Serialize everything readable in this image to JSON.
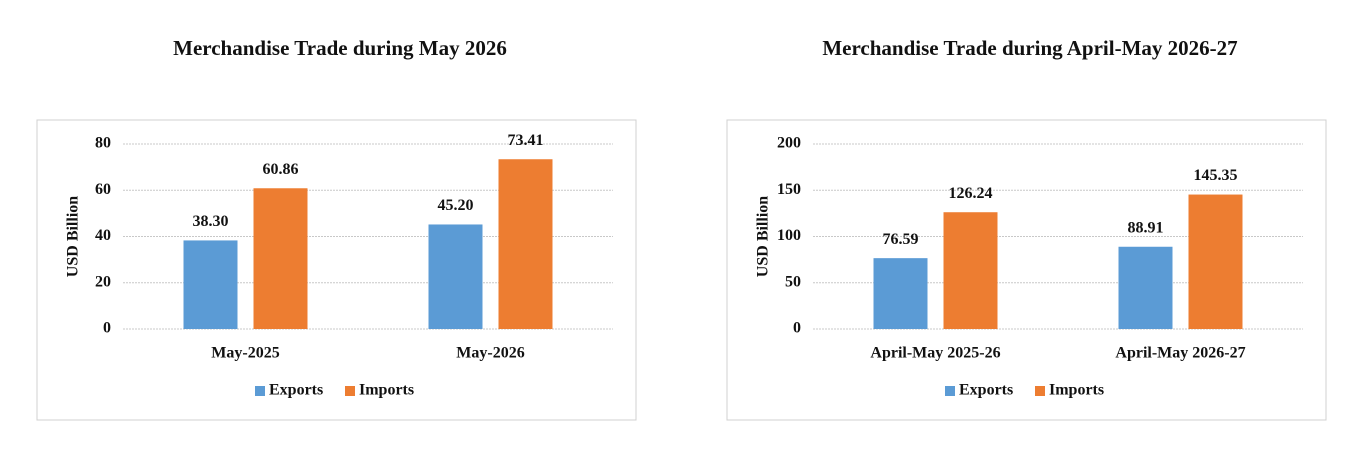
{
  "chart_data": [
    {
      "type": "bar",
      "title": "Merchandise Trade during May 2026",
      "y_label": "USD Billion",
      "categories": [
        "May-2025",
        "May-2026"
      ],
      "series": [
        {
          "name": "Exports",
          "color": "#5b9bd5",
          "values": [
            38.3,
            45.2
          ],
          "value_labels": [
            "38.30",
            "45.20"
          ]
        },
        {
          "name": "Imports",
          "color": "#ed7d31",
          "values": [
            60.86,
            73.41
          ],
          "value_labels": [
            "60.86",
            "73.41"
          ]
        }
      ],
      "ylim": [
        0,
        80
      ],
      "yticks": [
        0,
        20,
        40,
        60,
        80
      ],
      "grid": true,
      "legend": "bottom"
    },
    {
      "type": "bar",
      "title": "Merchandise Trade during April-May 2026-27",
      "y_label": "USD Billion",
      "categories": [
        "April-May 2025-26",
        "April-May 2026-27"
      ],
      "series": [
        {
          "name": "Exports",
          "color": "#5b9bd5",
          "values": [
            76.59,
            88.91
          ],
          "value_labels": [
            "76.59",
            "88.91"
          ]
        },
        {
          "name": "Imports",
          "color": "#ed7d31",
          "values": [
            126.24,
            145.35
          ],
          "value_labels": [
            "126.24",
            "145.35"
          ]
        }
      ],
      "ylim": [
        0,
        200
      ],
      "yticks": [
        0,
        50,
        100,
        150,
        200
      ],
      "grid": true,
      "legend": "bottom"
    }
  ]
}
